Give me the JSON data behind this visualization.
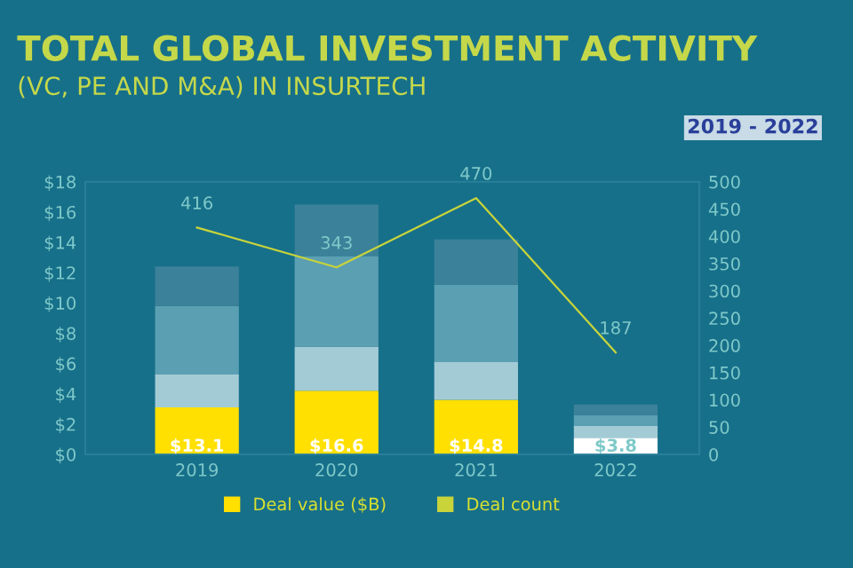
{
  "chart_data": {
    "type": "bar",
    "title": "TOTAL GLOBAL INVESTMENT ACTIVITY",
    "subtitle": "(VC, PE AND M&A) IN INSURTECH",
    "annotations": [
      "2019 - 2022",
      {
        "text": "$13.1",
        "x": "2019",
        "y": 0.5
      },
      {
        "text": "$16.6",
        "x": "2020",
        "y": 0.5
      },
      {
        "text": "$14.8",
        "x": "2021",
        "y": 0.5
      },
      {
        "text": "$3.8",
        "x": "2022",
        "y": 0.5
      }
    ],
    "categories": [
      "2019",
      "2020",
      "2021",
      "2022"
    ],
    "stacked": true,
    "series": [
      {
        "name": "Deal value ($B)",
        "color": "#ffe000",
        "colors": [
          "#ffe000",
          "#ffe000",
          "#ffe000",
          "#ffffff"
        ],
        "values": [
          3.1,
          4.2,
          3.6,
          1.1
        ]
      },
      {
        "color": "#a3cbd5",
        "values": [
          2.2,
          2.9,
          2.5,
          0.8
        ]
      },
      {
        "color": "#5b9fb3",
        "values": [
          4.5,
          6.0,
          5.1,
          0.7
        ]
      },
      {
        "color": "#3b8199",
        "values": [
          2.6,
          3.4,
          3.0,
          0.7
        ]
      },
      {
        "name": "Deal count",
        "type": "line",
        "axis": "y2",
        "color": "#c8d43a",
        "values": [
          416,
          343,
          470,
          187
        ],
        "value_labels": [
          "416",
          "343",
          "470",
          "187"
        ]
      }
    ],
    "ylim": [
      0,
      18
    ],
    "yticks": [
      {
        "value": 0,
        "label": "$0"
      },
      {
        "value": 2,
        "label": "$2"
      },
      {
        "value": 4,
        "label": "$4"
      },
      {
        "value": 6,
        "label": "$6"
      },
      {
        "value": 8,
        "label": "$8"
      },
      {
        "value": 10,
        "label": "$10"
      },
      {
        "value": 12,
        "label": "$12"
      },
      {
        "value": 14,
        "label": "$14"
      },
      {
        "value": 16,
        "label": "$16"
      },
      {
        "value": 18,
        "label": "$18"
      }
    ],
    "y2lim": [
      0,
      500
    ],
    "y2ticks": [
      0,
      50,
      100,
      150,
      200,
      250,
      300,
      350,
      400,
      450,
      500
    ],
    "grid": false,
    "legend": "bottom",
    "marker": "none",
    "line_style": "solid"
  }
}
